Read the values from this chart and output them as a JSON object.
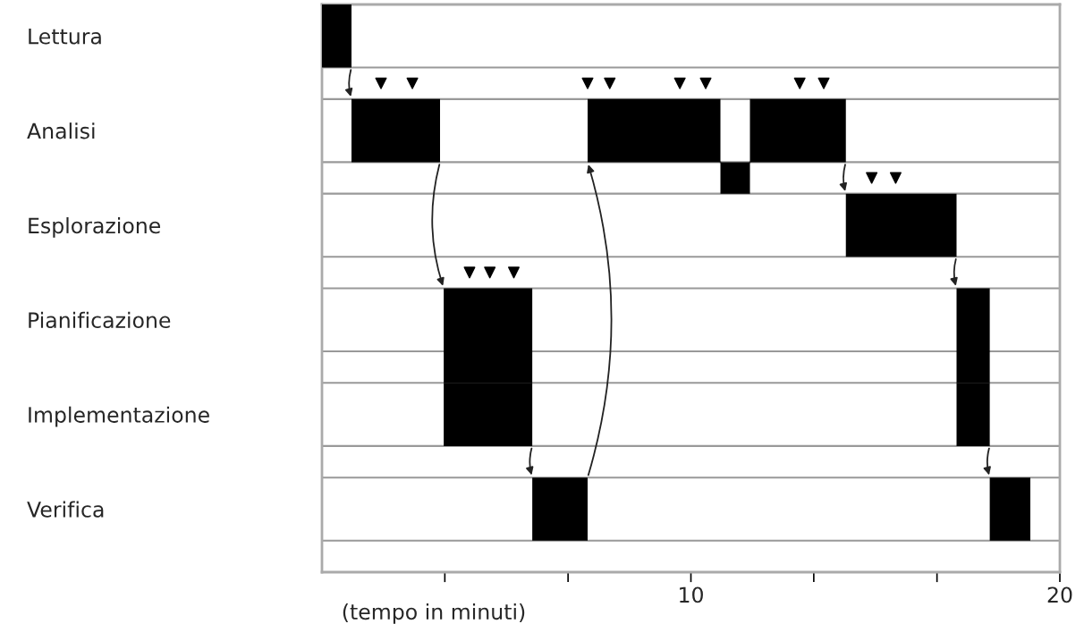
{
  "chart_data": {
    "type": "bar",
    "orientation": "horizontal",
    "xlabel": "(tempo in minuti)",
    "categories": [
      "Lettura",
      null,
      "Analisi",
      null,
      "Esplorazione",
      null,
      "Pianificazione",
      null,
      "Implementazione",
      null,
      "Verifica"
    ],
    "xlim": [
      0,
      20
    ],
    "xticks": [
      {
        "value": 3.33,
        "label": null
      },
      {
        "value": 6.67,
        "label": null
      },
      10,
      {
        "value": 13.33,
        "label": null
      },
      {
        "value": 16.67,
        "label": null
      },
      20
    ],
    "grid": "y",
    "legend": false,
    "series": [
      {
        "color": "#000000",
        "base": [
          0,
          null,
          null,
          null,
          null,
          null,
          null,
          null,
          null,
          null,
          null
        ],
        "values": [
          0.8,
          null,
          null,
          null,
          null,
          null,
          null,
          null,
          null,
          null,
          null
        ]
      },
      {
        "color": "#000000",
        "base": [
          null,
          null,
          0.8,
          null,
          null,
          null,
          null,
          null,
          null,
          null,
          null
        ],
        "values": [
          null,
          null,
          2.4,
          null,
          null,
          null,
          null,
          null,
          null,
          null,
          null
        ]
      },
      {
        "color": "#000000",
        "base": [
          null,
          null,
          null,
          null,
          null,
          null,
          3.3,
          3.3,
          3.3,
          null,
          null
        ],
        "values": [
          null,
          null,
          null,
          null,
          null,
          null,
          2.4,
          2.4,
          2.4,
          null,
          null
        ]
      },
      {
        "color": "#000000",
        "base": [
          null,
          null,
          null,
          null,
          null,
          null,
          null,
          null,
          null,
          null,
          5.7
        ],
        "values": [
          null,
          null,
          null,
          null,
          null,
          null,
          null,
          null,
          null,
          null,
          1.5
        ]
      },
      {
        "color": "#000000",
        "base": [
          null,
          null,
          7.2,
          null,
          null,
          null,
          null,
          null,
          null,
          null,
          null
        ],
        "values": [
          null,
          null,
          3.6,
          null,
          null,
          null,
          null,
          null,
          null,
          null,
          null
        ]
      },
      {
        "color": "#000000",
        "base": [
          null,
          null,
          null,
          10.8,
          null,
          null,
          null,
          null,
          null,
          null,
          null
        ],
        "values": [
          null,
          null,
          null,
          0.8,
          null,
          null,
          null,
          null,
          null,
          null,
          null
        ]
      },
      {
        "color": "#000000",
        "base": [
          null,
          null,
          11.6,
          null,
          null,
          null,
          null,
          null,
          null,
          null,
          null
        ],
        "values": [
          null,
          null,
          2.6,
          null,
          null,
          null,
          null,
          null,
          null,
          null,
          null
        ]
      },
      {
        "color": "#000000",
        "base": [
          null,
          null,
          null,
          null,
          14.2,
          null,
          null,
          null,
          null,
          null,
          null
        ],
        "values": [
          null,
          null,
          null,
          null,
          3.0,
          null,
          null,
          null,
          null,
          null,
          null
        ]
      },
      {
        "color": "#000000",
        "base": [
          null,
          null,
          null,
          null,
          null,
          null,
          17.2,
          17.2,
          17.2,
          null,
          null
        ],
        "values": [
          null,
          null,
          null,
          null,
          null,
          null,
          0.9,
          0.9,
          0.9,
          null,
          null
        ]
      },
      {
        "color": "#000000",
        "base": [
          null,
          null,
          null,
          null,
          null,
          null,
          null,
          null,
          null,
          null,
          18.1
        ],
        "values": [
          null,
          null,
          null,
          null,
          null,
          null,
          null,
          null,
          null,
          null,
          1.1
        ]
      },
      {
        "type": "scatter",
        "marker": "triangle",
        "color": "#000000",
        "values": [
          null,
          1.6,
          null,
          14.9,
          null,
          4.0,
          null,
          null,
          null,
          null,
          null
        ]
      },
      {
        "type": "scatter",
        "marker": "triangle",
        "color": "#000000",
        "values": [
          null,
          2.45,
          null,
          15.55,
          null,
          4.55,
          null,
          null,
          null,
          null,
          null
        ]
      },
      {
        "type": "scatter",
        "marker": "triangle",
        "color": "#000000",
        "values": [
          null,
          7.2,
          null,
          null,
          null,
          5.2,
          null,
          null,
          null,
          null,
          null
        ]
      },
      {
        "type": "scatter",
        "marker": "triangle",
        "color": "#000000",
        "values": [
          null,
          7.8,
          null,
          null,
          null,
          null,
          null,
          null,
          null,
          null,
          null
        ]
      },
      {
        "type": "scatter",
        "marker": "triangle",
        "color": "#000000",
        "values": [
          null,
          9.7,
          null,
          null,
          null,
          null,
          null,
          null,
          null,
          null,
          null
        ]
      },
      {
        "type": "scatter",
        "marker": "triangle",
        "color": "#000000",
        "values": [
          null,
          10.4,
          null,
          null,
          null,
          null,
          null,
          null,
          null,
          null,
          null
        ]
      },
      {
        "type": "scatter",
        "marker": "triangle",
        "color": "#000000",
        "values": [
          null,
          12.95,
          null,
          null,
          null,
          null,
          null,
          null,
          null,
          null,
          null
        ]
      },
      {
        "type": "scatter",
        "marker": "triangle",
        "color": "#000000",
        "values": [
          null,
          13.6,
          null,
          null,
          null,
          null,
          null,
          null,
          null,
          null,
          null
        ]
      }
    ]
  }
}
